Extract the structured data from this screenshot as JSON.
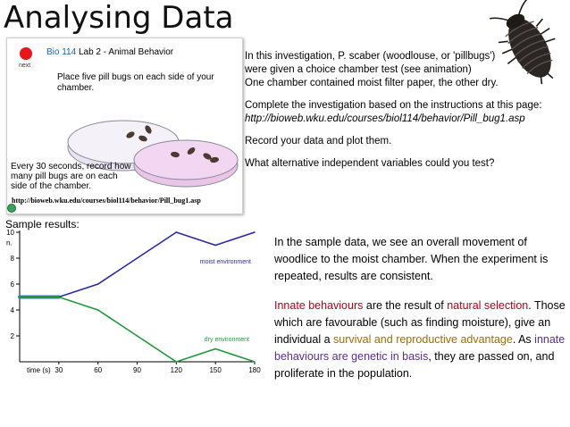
{
  "title": "Analysing Data",
  "animation": {
    "next_label": "next",
    "course": "Bio 114",
    "lab_title": " Lab 2  - Animal Behavior",
    "instruction1": "Place five pill bugs on each side of your chamber.",
    "instruction2": "Every 30 seconds, record how many pill bugs are on each side of the chamber.",
    "url": "http://bioweb.wku.edu/courses/biol114/behavior/Pill_bug1.asp"
  },
  "instructions": {
    "p1": "In this investigation, P. scaber (woodlouse, or 'pillbugs') were given a choice chamber test (see animation) One contained moist filter paper, the other dry.",
    "p1_line1": "In this investigation, P. scaber (woodlouse, or 'pillbugs')",
    "p1_line2": "were given a choice chamber test (see animation)",
    "p1_line3": "One chamber contained moist filter paper, the other dry.",
    "p2_line1": "Complete the investigation based on the instructions at this page:",
    "p2_link": "http://bioweb.wku.edu/courses/biol114/behavior/Pill_bug1.asp",
    "p3": "Record your data and plot them.",
    "p4": "What alternative independent variables could you test?"
  },
  "sample_label": "Sample results:",
  "chart_data": {
    "type": "line",
    "xlabel": "time (s)",
    "ylabel": "n.",
    "x": [
      0,
      30,
      60,
      90,
      120,
      150,
      180
    ],
    "xticks": [
      "30",
      "60",
      "90",
      "120",
      "150",
      "180"
    ],
    "yticks": [
      "10",
      "8",
      "6",
      "4",
      "2"
    ],
    "ylim": [
      0,
      10
    ],
    "xlim": [
      0,
      180
    ],
    "grid": false,
    "series": [
      {
        "name": "moist environment",
        "values": [
          5,
          5,
          6,
          8,
          10,
          9,
          10
        ],
        "color": "#2a2aa8"
      },
      {
        "name": "dry environment",
        "values": [
          5,
          5,
          4,
          2,
          0,
          1,
          0
        ],
        "color": "#1f9a3a"
      }
    ],
    "highlight_color": "#3a7bd5"
  },
  "analysis": {
    "p1": "In the sample data, we see an overall movement of woodlice to the moist chamber. When the experiment is repeated, results are consistent.",
    "p2_a": "Innate behaviours",
    "p2_b": " are the result of ",
    "p2_c": "natural selection",
    "p2_d": ". Those which are favourable (such as finding moisture), give an individual a ",
    "p2_e": "survival and reproductive advantage",
    "p2_f": ". As ",
    "p2_g": "innate behaviours are genetic in basis",
    "p2_h": ", they are passed on, and proliferate in the population."
  },
  "colors": {
    "red": "#b3001b",
    "olive": "#a36b00",
    "purple": "#5b2c8f",
    "link": "#1a5fb4"
  },
  "icons": {
    "bug": "woodlouse-icon",
    "record": "red-dot-icon",
    "globe": "globe-icon"
  }
}
